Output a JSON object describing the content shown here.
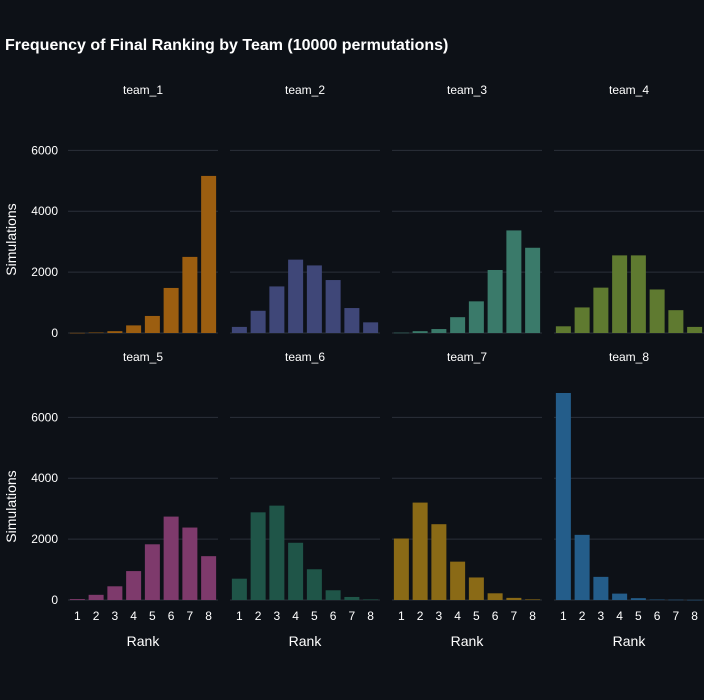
{
  "chart_data": {
    "type": "bar",
    "title": "Frequency of Final Ranking by Team (10000 permutations)",
    "xlabel": "Rank",
    "ylabel": "Simulations",
    "ylim": [
      0,
      6800
    ],
    "yticks": [
      0,
      2000,
      4000,
      6000
    ],
    "yticklabels": [
      "0",
      "2000",
      "4000",
      "6000"
    ],
    "categories": [
      "1",
      "2",
      "3",
      "4",
      "5",
      "6",
      "7",
      "8"
    ],
    "grid": true,
    "series": [
      {
        "name": "team_1",
        "color": "#9c5e10",
        "values": [
          5,
          15,
          60,
          250,
          560,
          1480,
          2500,
          5160
        ]
      },
      {
        "name": "team_2",
        "color": "#3f4778",
        "values": [
          200,
          730,
          1530,
          2410,
          2220,
          1740,
          820,
          350
        ]
      },
      {
        "name": "team_3",
        "color": "#3a7a6a",
        "values": [
          10,
          60,
          130,
          520,
          1040,
          2070,
          3370,
          2800
        ]
      },
      {
        "name": "team_4",
        "color": "#5f7a30",
        "values": [
          220,
          840,
          1490,
          2550,
          2550,
          1430,
          750,
          200
        ]
      },
      {
        "name": "team_5",
        "color": "#7e3a6c",
        "values": [
          30,
          170,
          450,
          950,
          1830,
          2740,
          2380,
          1440
        ]
      },
      {
        "name": "team_6",
        "color": "#1f5548",
        "values": [
          700,
          2880,
          3100,
          1880,
          1010,
          320,
          100,
          20
        ]
      },
      {
        "name": "team_7",
        "color": "#8a6a16",
        "values": [
          2020,
          3200,
          2490,
          1260,
          740,
          220,
          70,
          20
        ]
      },
      {
        "name": "team_8",
        "color": "#245d8a",
        "values": [
          6800,
          2140,
          760,
          210,
          60,
          15,
          10,
          5
        ]
      }
    ]
  }
}
